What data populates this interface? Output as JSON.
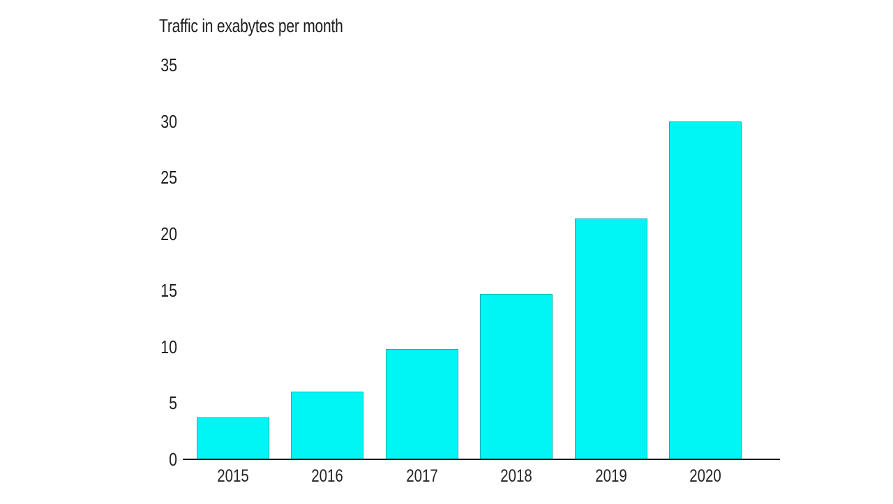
{
  "chart_data": {
    "type": "bar",
    "title": "Traffic in exabytes per month",
    "categories": [
      "2015",
      "2016",
      "2017",
      "2018",
      "2019",
      "2020"
    ],
    "values": [
      3.7,
      6,
      9.8,
      14.7,
      21.4,
      30
    ],
    "xlabel": "",
    "ylabel": "",
    "ylim": [
      0,
      35
    ],
    "yticks": [
      0,
      5,
      10,
      15,
      20,
      25,
      30,
      35
    ],
    "grid": false,
    "legend": null,
    "bar_color": "#00F5F5",
    "bar_border_color": "#00B4B4",
    "axis_color": "#1a1a1a",
    "text_color": "#1f1f1f",
    "background_color": "#ffffff"
  }
}
